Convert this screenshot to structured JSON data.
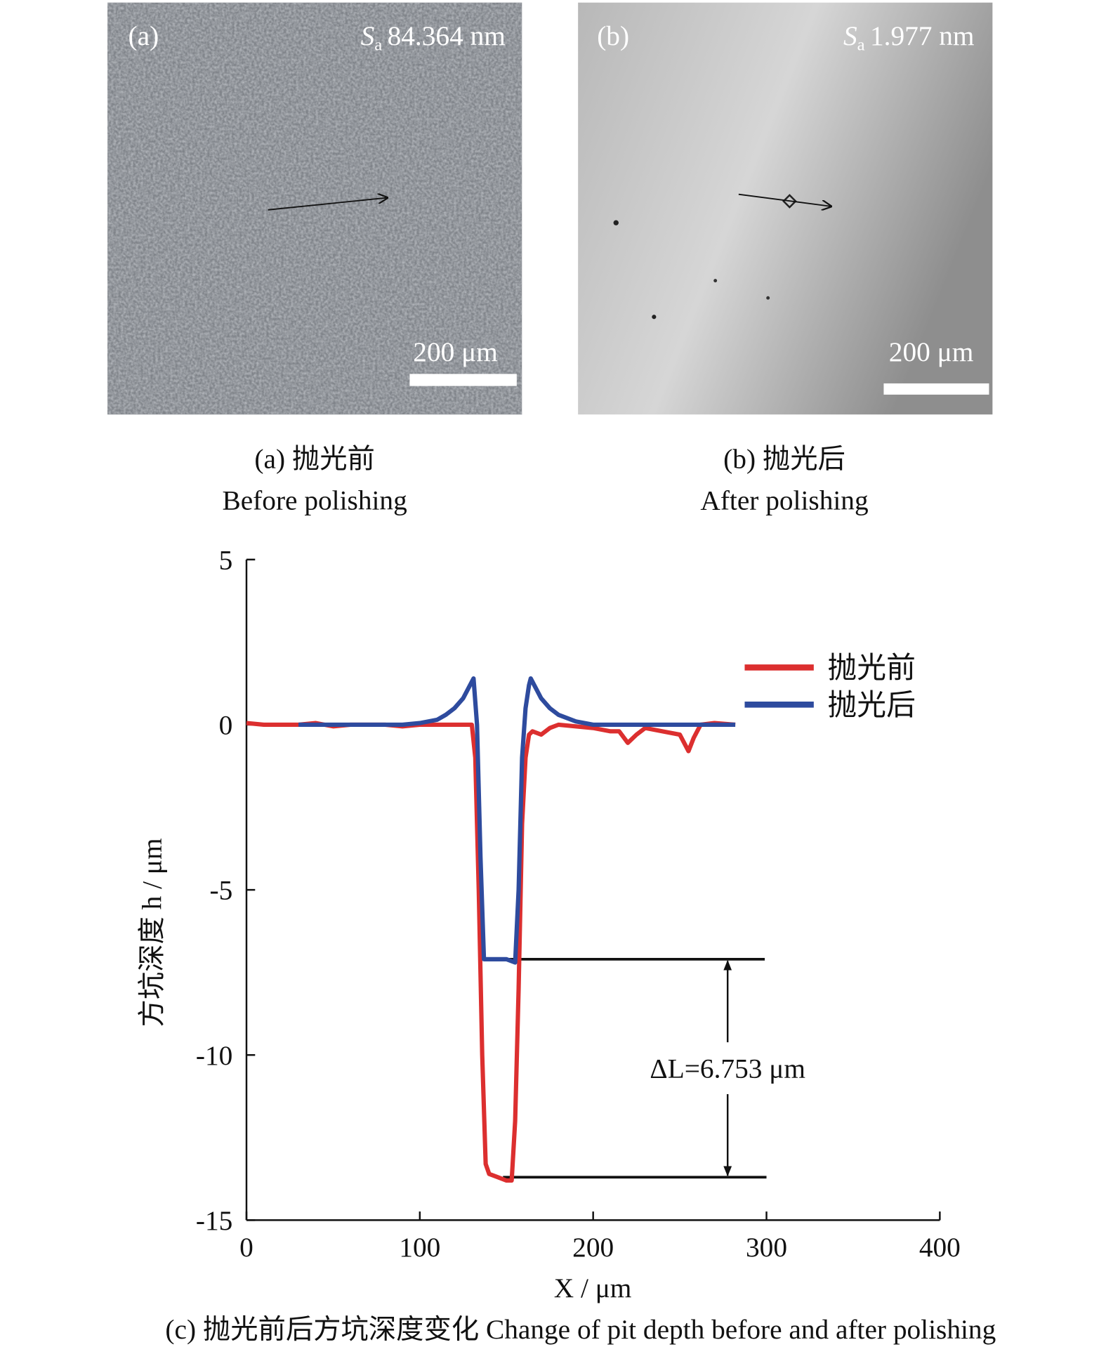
{
  "panels": [
    {
      "label": "(a)",
      "sa_symbol": "S",
      "sa_sub": "a",
      "sa_value": "84.364 nm",
      "scale": "200 μm",
      "caption_cn": "(a) 抛光前",
      "caption_en": "Before polishing"
    },
    {
      "label": "(b)",
      "sa_symbol": "S",
      "sa_sub": "a",
      "sa_value": "1.977 nm",
      "scale": "200 μm",
      "caption_cn": "(b) 抛光后",
      "caption_en": "After polishing"
    }
  ],
  "chart_data": {
    "type": "line",
    "x_label": "X / μm",
    "y_label": "方坑深度 h / μm",
    "caption": "(c) 抛光前后方坑深度变化 Change of pit depth before and after polishing",
    "xlim": [
      0,
      400
    ],
    "xticks": [
      0,
      100,
      200,
      300,
      400
    ],
    "ylim": [
      -15,
      5
    ],
    "yticks": [
      -15,
      -10,
      -5,
      0,
      5
    ],
    "legend": "upper right",
    "series": [
      {
        "name": "抛光前",
        "color": "#dc2f2f",
        "x": [
          0,
          10,
          20,
          30,
          40,
          50,
          60,
          70,
          80,
          90,
          100,
          110,
          120,
          130,
          132,
          134,
          136,
          138,
          140,
          145,
          150,
          153,
          155,
          157,
          159,
          161,
          163,
          165,
          170,
          175,
          180,
          190,
          200,
          210,
          215,
          220,
          225,
          230,
          240,
          250,
          255,
          258,
          262,
          270,
          282
        ],
        "values": [
          0.05,
          0,
          0,
          0,
          0.05,
          -0.05,
          0,
          0,
          0,
          -0.05,
          0,
          0,
          0,
          0,
          -1,
          -5,
          -10,
          -13.3,
          -13.6,
          -13.7,
          -13.8,
          -13.8,
          -12,
          -8,
          -3,
          -1,
          -0.3,
          -0.2,
          -0.3,
          -0.1,
          0,
          -0.05,
          -0.1,
          -0.2,
          -0.2,
          -0.55,
          -0.3,
          -0.1,
          -0.2,
          -0.3,
          -0.8,
          -0.4,
          0,
          0.05,
          0
        ]
      },
      {
        "name": "抛光后",
        "color": "#2e4b9e",
        "x": [
          30,
          50,
          70,
          90,
          100,
          110,
          115,
          120,
          125,
          128,
          131,
          133,
          135,
          137,
          140,
          145,
          150,
          155,
          157,
          159,
          161,
          163,
          164,
          167,
          170,
          175,
          180,
          190,
          200,
          220,
          250,
          282
        ],
        "values": [
          0,
          0,
          0,
          0,
          0.05,
          0.15,
          0.3,
          0.5,
          0.8,
          1.1,
          1.4,
          0,
          -4,
          -7.1,
          -7.1,
          -7.1,
          -7.1,
          -7.2,
          -5,
          -1,
          0.5,
          1.2,
          1.4,
          1.1,
          0.8,
          0.5,
          0.3,
          0.1,
          0,
          0,
          0,
          0
        ]
      }
    ],
    "reference_lines": [
      {
        "y": -7.1,
        "x": [
          145,
          299
        ]
      },
      {
        "y": -13.7,
        "x": [
          148,
          300
        ]
      }
    ],
    "annotation": "ΔL=6.753 μm"
  }
}
